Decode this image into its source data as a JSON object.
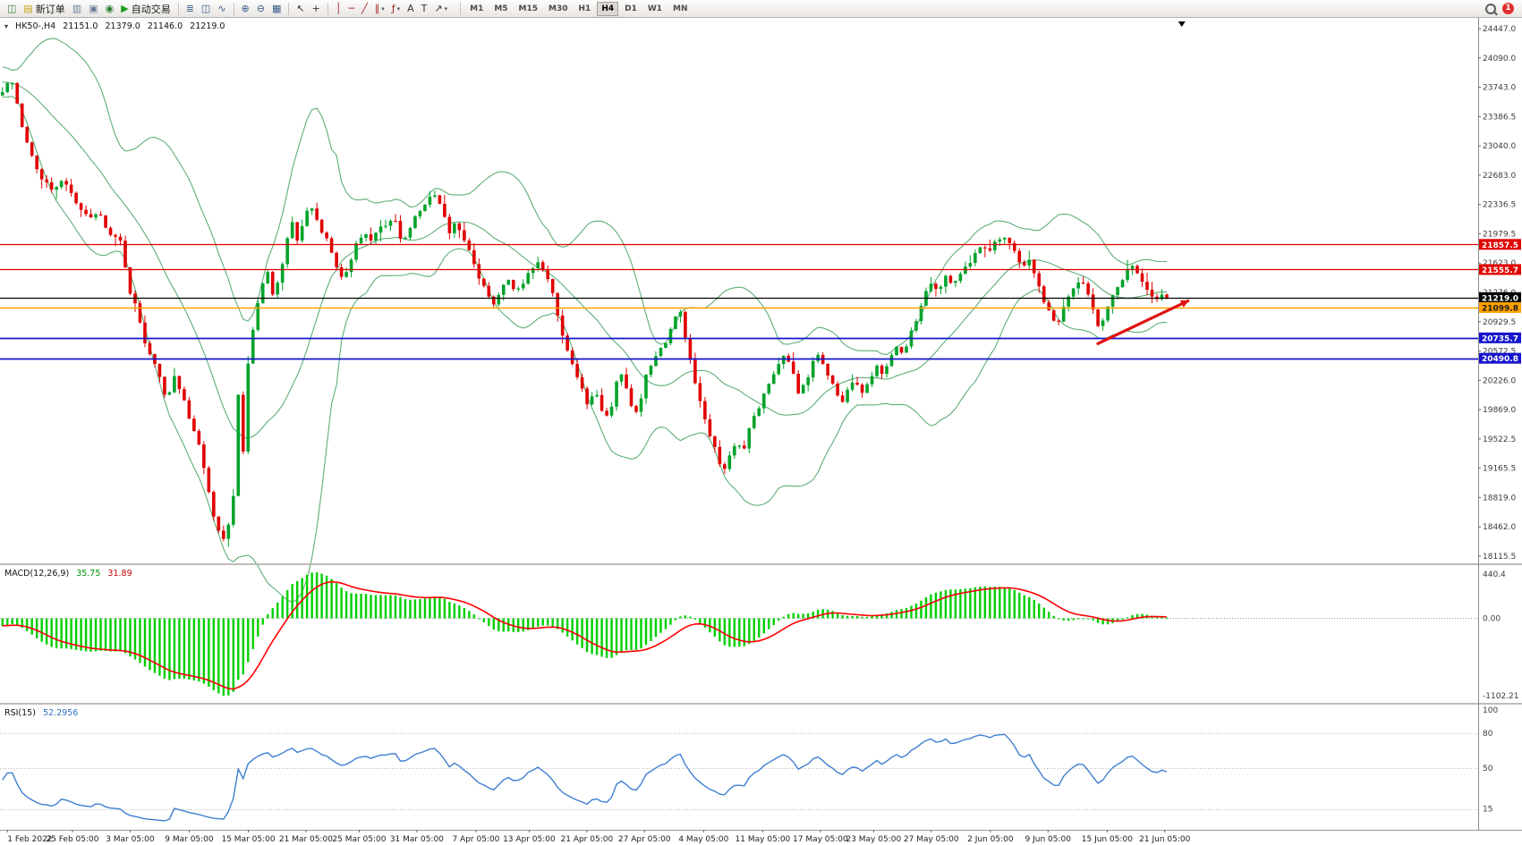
{
  "toolbar": {
    "groups": [
      {
        "items": [
          {
            "name": "new-chart-button",
            "glyph": "◫",
            "color": "#3a7d3a"
          },
          {
            "name": "new-order-button",
            "glyph": "▤",
            "color": "#c8a21c",
            "label": "新订单"
          },
          {
            "name": "profiles-button",
            "glyph": "▥",
            "color": "#6b7f9e"
          },
          {
            "name": "market-watch-button",
            "glyph": "▣",
            "color": "#6b7f9e"
          },
          {
            "name": "data-window-button",
            "glyph": "◉",
            "color": "#2e7d32"
          },
          {
            "name": "auto-trading-button",
            "glyph": "▶",
            "color": "#18a018",
            "label": "自动交易"
          }
        ]
      },
      {
        "items": [
          {
            "name": "bars-chart-button",
            "glyph": "≣",
            "color": "#38598a"
          },
          {
            "name": "candlestick-chart-button",
            "glyph": "◫",
            "color": "#38598a"
          },
          {
            "name": "line-chart-button",
            "glyph": "∿",
            "color": "#38598a"
          }
        ]
      },
      {
        "items": [
          {
            "name": "zoom-in-button",
            "glyph": "⊕",
            "color": "#38598a"
          },
          {
            "name": "zoom-out-button",
            "glyph": "⊖",
            "color": "#38598a"
          },
          {
            "name": "tile-windows-button",
            "glyph": "▦",
            "color": "#38598a"
          }
        ]
      },
      {
        "items": [
          {
            "name": "cursor-button",
            "glyph": "↖",
            "color": "#333333"
          },
          {
            "name": "crosshair-button",
            "glyph": "+",
            "color": "#333333"
          }
        ]
      },
      {
        "items": [
          {
            "name": "vertical-line-button",
            "glyph": "│",
            "color": "#a02020"
          },
          {
            "name": "horizontal-line-button",
            "glyph": "─",
            "color": "#a02020"
          },
          {
            "name": "trendline-button",
            "glyph": "╱",
            "color": "#a02020"
          },
          {
            "name": "channel-button",
            "glyph": "∥",
            "color": "#a02020",
            "caret": true
          },
          {
            "name": "fibonacci-button",
            "glyph": "ƒ",
            "color": "#a02020",
            "caret": true
          },
          {
            "name": "text-button",
            "glyph": "A",
            "color": "#333333"
          },
          {
            "name": "label-button",
            "glyph": "T",
            "color": "#333333"
          },
          {
            "name": "arrows-button",
            "glyph": "↗",
            "color": "#333333",
            "caret": true
          }
        ]
      }
    ],
    "timeframes": {
      "items": [
        "M1",
        "M5",
        "M15",
        "M30",
        "H1",
        "H4",
        "D1",
        "W1",
        "MN"
      ],
      "active": "H4"
    },
    "right": {
      "search_name": "search-icon",
      "badge_label": "1",
      "badge_color": "#e03030"
    }
  },
  "chart_data": {
    "type": "candlestick",
    "symbol_period": "HK50-,H4",
    "ohlc": {
      "open": "21151.0",
      "high": "21379.0",
      "low": "21146.0",
      "close": "21219.0"
    },
    "price_min": 18115.5,
    "price_max": 24447.0,
    "candles_count": 238,
    "shift_frac": 0.791,
    "bull_color": "#00a32a",
    "bear_color": "#e00000",
    "bollinger_color": "#5fae77",
    "price_axis_labels": [
      "24447.0",
      "24090.0",
      "23743.0",
      "23386.5",
      "23040.0",
      "22683.0",
      "22336.5",
      "21979.5",
      "21623.0",
      "21276.0",
      "20929.5",
      "20572.5",
      "20226.0",
      "19869.0",
      "19522.5",
      "19165.5",
      "18819.0",
      "18462.0",
      "18115.5"
    ],
    "levels": [
      {
        "price": 21857.5,
        "label": "21857.5",
        "color": "#e00000",
        "text": "#ffffff",
        "width": 1.2
      },
      {
        "price": 21555.7,
        "label": "21555.7",
        "color": "#e00000",
        "text": "#ffffff",
        "width": 1.2
      },
      {
        "price": 21219.0,
        "label": "21219.0",
        "color": "#000000",
        "text": "#ffffff",
        "width": 1.2
      },
      {
        "price": 21099.8,
        "label": "21099.8",
        "color": "#ffa000",
        "text": "#1a1a1a",
        "width": 1.6
      },
      {
        "price": 20735.7,
        "label": "20735.7",
        "color": "#1414cc",
        "text": "#ffffff",
        "width": 1.8
      },
      {
        "price": 20490.8,
        "label": "20490.8",
        "color": "#1414cc",
        "text": "#ffffff",
        "width": 1.8
      }
    ],
    "arrow": {
      "x1_frac": 0.938,
      "price1": 20660,
      "x2_frac": 1.017,
      "price2": 21185,
      "color": "#e01010"
    },
    "price_path": [
      [
        0,
        23680
      ],
      [
        0.007,
        23880
      ],
      [
        0.017,
        23250
      ],
      [
        0.029,
        22750
      ],
      [
        0.041,
        22520
      ],
      [
        0.054,
        22620
      ],
      [
        0.062,
        22400
      ],
      [
        0.075,
        22150
      ],
      [
        0.083,
        22230
      ],
      [
        0.093,
        21960
      ],
      [
        0.101,
        21940
      ],
      [
        0.108,
        21350
      ],
      [
        0.116,
        21060
      ],
      [
        0.124,
        20600
      ],
      [
        0.133,
        20350
      ],
      [
        0.141,
        19950
      ],
      [
        0.148,
        20280
      ],
      [
        0.156,
        20000
      ],
      [
        0.162,
        19700
      ],
      [
        0.17,
        19420
      ],
      [
        0.176,
        18950
      ],
      [
        0.183,
        18500
      ],
      [
        0.189,
        18280
      ],
      [
        0.195,
        18550
      ],
      [
        0.199,
        18900
      ],
      [
        0.203,
        20200
      ],
      [
        0.206,
        19150
      ],
      [
        0.21,
        20350
      ],
      [
        0.215,
        20800
      ],
      [
        0.222,
        21350
      ],
      [
        0.228,
        21520
      ],
      [
        0.232,
        21250
      ],
      [
        0.239,
        21500
      ],
      [
        0.248,
        22200
      ],
      [
        0.254,
        21850
      ],
      [
        0.26,
        22250
      ],
      [
        0.266,
        22300
      ],
      [
        0.273,
        22050
      ],
      [
        0.28,
        21880
      ],
      [
        0.287,
        21600
      ],
      [
        0.292,
        21420
      ],
      [
        0.298,
        21600
      ],
      [
        0.305,
        21900
      ],
      [
        0.311,
        22000
      ],
      [
        0.317,
        21900
      ],
      [
        0.323,
        22050
      ],
      [
        0.33,
        22100
      ],
      [
        0.336,
        22200
      ],
      [
        0.343,
        21900
      ],
      [
        0.349,
        22000
      ],
      [
        0.355,
        22200
      ],
      [
        0.361,
        22300
      ],
      [
        0.367,
        22430
      ],
      [
        0.373,
        22470
      ],
      [
        0.379,
        22200
      ],
      [
        0.384,
        22000
      ],
      [
        0.39,
        22150
      ],
      [
        0.396,
        21900
      ],
      [
        0.402,
        21750
      ],
      [
        0.408,
        21500
      ],
      [
        0.415,
        21300
      ],
      [
        0.422,
        21150
      ],
      [
        0.428,
        21300
      ],
      [
        0.434,
        21450
      ],
      [
        0.441,
        21300
      ],
      [
        0.447,
        21400
      ],
      [
        0.453,
        21520
      ],
      [
        0.459,
        21660
      ],
      [
        0.466,
        21500
      ],
      [
        0.472,
        21300
      ],
      [
        0.478,
        20900
      ],
      [
        0.484,
        20650
      ],
      [
        0.49,
        20400
      ],
      [
        0.497,
        20150
      ],
      [
        0.503,
        19900
      ],
      [
        0.509,
        20100
      ],
      [
        0.515,
        19850
      ],
      [
        0.521,
        19750
      ],
      [
        0.527,
        20200
      ],
      [
        0.533,
        20300
      ],
      [
        0.539,
        19950
      ],
      [
        0.546,
        19800
      ],
      [
        0.552,
        20250
      ],
      [
        0.558,
        20450
      ],
      [
        0.564,
        20600
      ],
      [
        0.57,
        20700
      ],
      [
        0.576,
        20950
      ],
      [
        0.582,
        21050
      ],
      [
        0.588,
        20650
      ],
      [
        0.594,
        20250
      ],
      [
        0.6,
        19950
      ],
      [
        0.606,
        19600
      ],
      [
        0.612,
        19400
      ],
      [
        0.618,
        19100
      ],
      [
        0.624,
        19300
      ],
      [
        0.63,
        19500
      ],
      [
        0.636,
        19350
      ],
      [
        0.642,
        19700
      ],
      [
        0.648,
        19850
      ],
      [
        0.654,
        20050
      ],
      [
        0.66,
        20250
      ],
      [
        0.666,
        20400
      ],
      [
        0.672,
        20550
      ],
      [
        0.678,
        20350
      ],
      [
        0.684,
        20050
      ],
      [
        0.69,
        20200
      ],
      [
        0.696,
        20450
      ],
      [
        0.702,
        20550
      ],
      [
        0.708,
        20300
      ],
      [
        0.714,
        20150
      ],
      [
        0.72,
        19950
      ],
      [
        0.726,
        20100
      ],
      [
        0.732,
        20250
      ],
      [
        0.738,
        20050
      ],
      [
        0.744,
        20200
      ],
      [
        0.75,
        20400
      ],
      [
        0.756,
        20300
      ],
      [
        0.762,
        20500
      ],
      [
        0.768,
        20650
      ],
      [
        0.774,
        20500
      ],
      [
        0.78,
        20800
      ],
      [
        0.786,
        21000
      ],
      [
        0.792,
        21250
      ],
      [
        0.798,
        21400
      ],
      [
        0.804,
        21300
      ],
      [
        0.81,
        21500
      ],
      [
        0.816,
        21350
      ],
      [
        0.822,
        21500
      ],
      [
        0.828,
        21600
      ],
      [
        0.834,
        21700
      ],
      [
        0.84,
        21850
      ],
      [
        0.846,
        21750
      ],
      [
        0.852,
        21900
      ],
      [
        0.858,
        21950
      ],
      [
        0.864,
        21900
      ],
      [
        0.87,
        21750
      ],
      [
        0.876,
        21600
      ],
      [
        0.882,
        21700
      ],
      [
        0.888,
        21450
      ],
      [
        0.894,
        21200
      ],
      [
        0.9,
        21000
      ],
      [
        0.906,
        20900
      ],
      [
        0.912,
        21150
      ],
      [
        0.918,
        21300
      ],
      [
        0.924,
        21400
      ],
      [
        0.93,
        21350
      ],
      [
        0.936,
        21100
      ],
      [
        0.942,
        20850
      ],
      [
        0.948,
        21050
      ],
      [
        0.954,
        21250
      ],
      [
        0.96,
        21400
      ],
      [
        0.966,
        21550
      ],
      [
        0.972,
        21600
      ],
      [
        0.978,
        21450
      ],
      [
        0.984,
        21300
      ],
      [
        0.99,
        21200
      ],
      [
        0.996,
        21250
      ],
      [
        1,
        21219
      ]
    ]
  },
  "macd": {
    "label": "MACD(12,26,9)",
    "value_main": "35.75",
    "value_signal": "31.89",
    "params": {
      "fast": 12,
      "slow": 26,
      "signal": 9
    },
    "axis_labels": [
      "440.4",
      "0.00",
      "-1102.21"
    ],
    "histogram_color": "#00d000",
    "signal_color": "#ff0000"
  },
  "rsi": {
    "label": "RSI(15)",
    "value": "52.2956",
    "period": 15,
    "axis_labels": [
      "100",
      "80",
      "50",
      "15"
    ],
    "levels": [
      80,
      50,
      15
    ],
    "line_color": "#3f7fd0"
  },
  "time_axis": {
    "labels": [
      "1 Feb 2022",
      "25 Feb 05:00",
      "3 Mar 05:00",
      "9 Mar 05:00",
      "15 Mar 05:00",
      "21 Mar 05:00",
      "25 Mar 05:00",
      "31 Mar 05:00",
      "7 Apr 05:00",
      "13 Apr 05:00",
      "21 Apr 05:00",
      "27 Apr 05:00",
      "4 May 05:00",
      "11 May 05:00",
      "17 May 05:00",
      "23 May 05:00",
      "27 May 05:00",
      "2 Jun 05:00",
      "9 Jun 05:00",
      "15 Jun 05:00",
      "21 Jun 05:00"
    ],
    "positions": [
      0.005,
      0.049,
      0.088,
      0.128,
      0.168,
      0.207,
      0.243,
      0.282,
      0.322,
      0.358,
      0.397,
      0.436,
      0.476,
      0.516,
      0.555,
      0.591,
      0.63,
      0.67,
      0.709,
      0.749,
      0.788
    ]
  }
}
